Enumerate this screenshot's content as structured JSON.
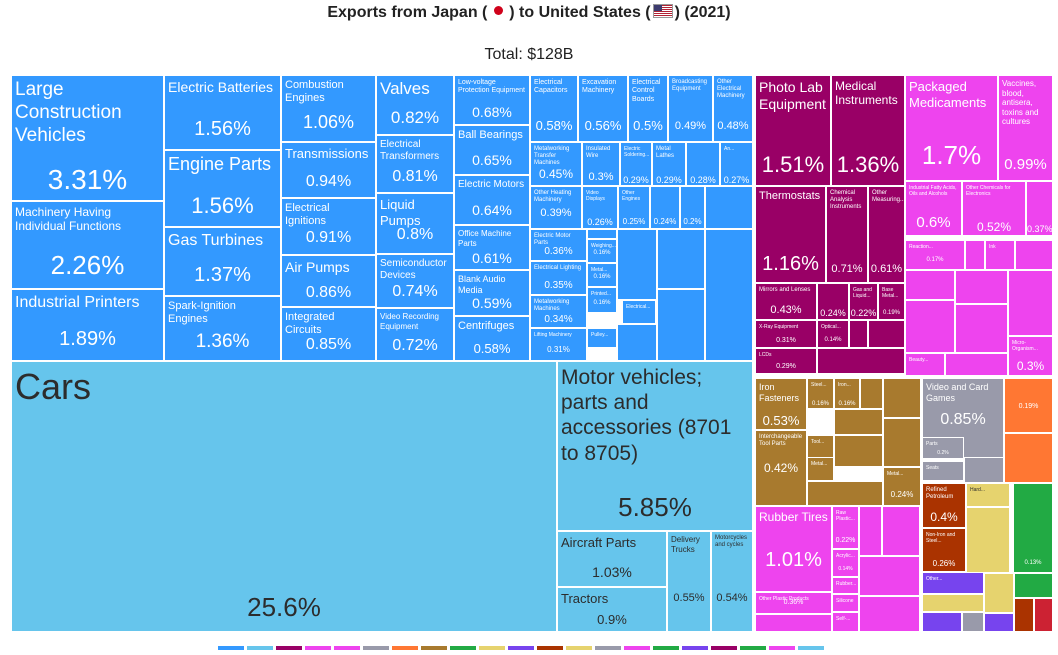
{
  "title_text": "Exports from Japan ( ",
  "title_mid": " ) to United States (",
  "title_end": ") (2021)",
  "total": "Total: $128B",
  "colors": {
    "machinery": "#3399ff",
    "transport": "#66c5ec",
    "instruments": "#990066",
    "chemicals": "#ee44ee",
    "metals": "#a87a2e",
    "plastics": "#ee44ee",
    "mineral": "#aa3300",
    "misc": "#999aaa",
    "orange": "#ff7733",
    "green": "#22aa44",
    "yellow": "#e6d36e",
    "purple": "#7744ee"
  },
  "chart_data": {
    "type": "treemap",
    "title": "Exports from Japan ( ) to United States (2021)",
    "total": "$128B",
    "items": [
      {
        "name": "Large Construction Vehicles",
        "value": 3.31,
        "group": "machinery"
      },
      {
        "name": "Machinery Having Individual Functions",
        "value": 2.26,
        "group": "machinery"
      },
      {
        "name": "Industrial Printers",
        "value": 1.89,
        "group": "machinery"
      },
      {
        "name": "Electric Batteries",
        "value": 1.56,
        "group": "machinery"
      },
      {
        "name": "Engine Parts",
        "value": 1.56,
        "group": "machinery"
      },
      {
        "name": "Gas Turbines",
        "value": 1.37,
        "group": "machinery"
      },
      {
        "name": "Spark-Ignition Engines",
        "value": 1.36,
        "group": "machinery"
      },
      {
        "name": "Combustion Engines",
        "value": 1.06,
        "group": "machinery"
      },
      {
        "name": "Transmissions",
        "value": 0.94,
        "group": "machinery"
      },
      {
        "name": "Electrical Ignitions",
        "value": 0.91,
        "group": "machinery"
      },
      {
        "name": "Air Pumps",
        "value": 0.86,
        "group": "machinery"
      },
      {
        "name": "Integrated Circuits",
        "value": 0.85,
        "group": "machinery"
      },
      {
        "name": "Valves",
        "value": 0.82,
        "group": "machinery"
      },
      {
        "name": "Electrical Transformers",
        "value": 0.81,
        "group": "machinery"
      },
      {
        "name": "Liquid Pumps",
        "value": 0.8,
        "group": "machinery"
      },
      {
        "name": "Semiconductor Devices",
        "value": 0.74,
        "group": "machinery"
      },
      {
        "name": "Video Recording Equipment",
        "value": 0.72,
        "group": "machinery"
      },
      {
        "name": "Low-voltage Protection Equipment",
        "value": 0.68,
        "group": "machinery"
      },
      {
        "name": "Ball Bearings",
        "value": 0.65,
        "group": "machinery"
      },
      {
        "name": "Electric Motors",
        "value": 0.64,
        "group": "machinery"
      },
      {
        "name": "Office Machine Parts",
        "value": 0.61,
        "group": "machinery"
      },
      {
        "name": "Blank Audio Media",
        "value": 0.59,
        "group": "machinery"
      },
      {
        "name": "Centrifuges",
        "value": 0.58,
        "group": "machinery"
      },
      {
        "name": "Electrical Capacitors",
        "value": 0.58,
        "group": "machinery"
      },
      {
        "name": "Excavation Machinery",
        "value": 0.56,
        "group": "machinery"
      },
      {
        "name": "Electrical Control Boards",
        "value": 0.5,
        "group": "machinery"
      },
      {
        "name": "Broadcasting Equipment",
        "value": 0.49,
        "group": "machinery"
      },
      {
        "name": "Other Electrical Machinery",
        "value": 0.48,
        "group": "machinery"
      },
      {
        "name": "Metalworking Transfer Machines",
        "value": 0.45,
        "group": "machinery"
      },
      {
        "name": "Insulated Wire",
        "value": 0.3,
        "group": "machinery"
      },
      {
        "name": "Electric Soldering Equipment",
        "value": 0.29,
        "group": "machinery"
      },
      {
        "name": "Metal Lathes",
        "value": 0.29,
        "group": "machinery"
      },
      {
        "name": "Other Heating Machinery",
        "value": 0.39,
        "group": "machinery"
      },
      {
        "name": "Video Displays",
        "value": 0.26,
        "group": "machinery"
      },
      {
        "name": "Other Engines",
        "value": 0.25,
        "group": "machinery"
      },
      {
        "name": "Electric Motor Parts",
        "value": 0.36,
        "group": "machinery"
      },
      {
        "name": "Electrical Lighting",
        "value": 0.35,
        "group": "machinery"
      },
      {
        "name": "Metalworking Machines",
        "value": 0.34,
        "group": "machinery"
      },
      {
        "name": "Lifting Machinery",
        "value": 0.31,
        "group": "machinery"
      },
      {
        "name": "Cars",
        "value": 25.6,
        "group": "transport"
      },
      {
        "name": "Motor vehicles; parts and accessories (8701 to 8705)",
        "value": 5.85,
        "group": "transport"
      },
      {
        "name": "Aircraft Parts",
        "value": 1.03,
        "group": "transport"
      },
      {
        "name": "Tractors",
        "value": 0.9,
        "group": "transport"
      },
      {
        "name": "Delivery Trucks",
        "value": 0.55,
        "group": "transport"
      },
      {
        "name": "Motorcycles and cycles",
        "value": 0.54,
        "group": "transport"
      },
      {
        "name": "Photo Lab Equipment",
        "value": 1.51,
        "group": "instruments"
      },
      {
        "name": "Medical Instruments",
        "value": 1.36,
        "group": "instruments"
      },
      {
        "name": "Thermostats",
        "value": 1.16,
        "group": "instruments"
      },
      {
        "name": "Chemical Analysis Instruments",
        "value": 0.71,
        "group": "instruments"
      },
      {
        "name": "Other Measuring Instruments",
        "value": 0.61,
        "group": "instruments"
      },
      {
        "name": "Mirrors and Lenses",
        "value": 0.43,
        "group": "instruments"
      },
      {
        "name": "X-Ray Equipment",
        "value": 0.31,
        "group": "instruments"
      },
      {
        "name": "LCDs",
        "value": 0.29,
        "group": "instruments"
      },
      {
        "name": "Gas and Liquid Flow Measuring Instruments",
        "value": 0.22,
        "group": "instruments"
      },
      {
        "name": "Packaged Medicaments",
        "value": 1.7,
        "group": "chemicals"
      },
      {
        "name": "Vaccines, blood, antisera, toxins and cultures",
        "value": 0.99,
        "group": "chemicals"
      },
      {
        "name": "Industrial Fatty Acids, Oils and Alcohols",
        "value": 0.6,
        "group": "chemicals"
      },
      {
        "name": "Other Chemicals for Electronics",
        "value": 0.52,
        "group": "chemicals"
      },
      {
        "name": "Iron Fasteners",
        "value": 0.53,
        "group": "metals"
      },
      {
        "name": "Interchangeable Tool Parts",
        "value": 0.42,
        "group": "metals"
      },
      {
        "name": "Rubber Tires",
        "value": 1.01,
        "group": "plastics"
      },
      {
        "name": "Other Plastic Products",
        "value": 0.36,
        "group": "plastics"
      },
      {
        "name": "Video and Card Games",
        "value": 0.85,
        "group": "misc"
      },
      {
        "name": "Refined Petroleum",
        "value": 0.4,
        "group": "mineral"
      },
      {
        "name": "Non-Iron and Steel Metal",
        "value": 0.26,
        "group": "mineral"
      }
    ]
  },
  "tiles": [
    {
      "name": "Large Construction Vehicles",
      "value": "3.31%",
      "g": "machinery"
    },
    {
      "name": "Machinery Having Individual Functions",
      "value": "2.26%",
      "g": "machinery"
    },
    {
      "name": "Industrial Printers",
      "value": "1.89%",
      "g": "machinery"
    },
    {
      "name": "Electric Batteries",
      "value": "1.56%",
      "g": "machinery"
    },
    {
      "name": "Engine Parts",
      "value": "1.56%",
      "g": "machinery"
    },
    {
      "name": "Gas Turbines",
      "value": "1.37%",
      "g": "machinery"
    },
    {
      "name": "Spark-Ignition Engines",
      "value": "1.36%",
      "g": "machinery"
    },
    {
      "name": "Combustion Engines",
      "value": "1.06%",
      "g": "machinery"
    },
    {
      "name": "Transmissions",
      "value": "0.94%",
      "g": "machinery"
    },
    {
      "name": "Electrical Ignitions",
      "value": "0.91%",
      "g": "machinery"
    },
    {
      "name": "Air Pumps",
      "value": "0.86%",
      "g": "machinery"
    },
    {
      "name": "Integrated Circuits",
      "value": "0.85%",
      "g": "machinery"
    },
    {
      "name": "Valves",
      "value": "0.82%",
      "g": "machinery"
    },
    {
      "name": "Electrical Transformers",
      "value": "0.81%",
      "g": "machinery"
    },
    {
      "name": "Liquid Pumps",
      "value": "0.8%",
      "g": "machinery"
    },
    {
      "name": "Semiconductor Devices",
      "value": "0.74%",
      "g": "machinery"
    },
    {
      "name": "Video Recording Equipment",
      "value": "0.72%",
      "g": "machinery"
    },
    {
      "name": "Low-voltage Protection Equipment",
      "value": "0.68%",
      "g": "machinery"
    },
    {
      "name": "Ball Bearings",
      "value": "0.65%",
      "g": "machinery"
    },
    {
      "name": "Electric Motors",
      "value": "0.64%",
      "g": "machinery"
    },
    {
      "name": "Office Machine Parts",
      "value": "0.61%",
      "g": "machinery"
    },
    {
      "name": "Blank Audio Media",
      "value": "0.59%",
      "g": "machinery"
    },
    {
      "name": "Centrifuges",
      "value": "0.58%",
      "g": "machinery"
    },
    {
      "name": "Electrical Capacitors",
      "value": "0.58%",
      "g": "machinery"
    },
    {
      "name": "Excavation Machinery",
      "value": "0.56%",
      "g": "machinery"
    },
    {
      "name": "Electrical Control Boards",
      "value": "0.5%",
      "g": "machinery"
    },
    {
      "name": "Broadcasting Equipment",
      "value": "0.49%",
      "g": "machinery"
    },
    {
      "name": "Other Electrical Machinery",
      "value": "0.48%",
      "g": "machinery"
    },
    {
      "name": "Metalworking Transfer Machines",
      "value": "0.45%",
      "g": "machinery"
    },
    {
      "name": "Insulated Wire",
      "value": "0.3%",
      "g": "machinery"
    },
    {
      "name": "Electric Soldering...",
      "value": "0.29%",
      "g": "machinery"
    },
    {
      "name": "Metal Lathes",
      "value": "0.29%",
      "g": "machinery"
    },
    {
      "name": "",
      "value": "0.28%",
      "g": "machinery"
    },
    {
      "name": "An...",
      "value": "0.27%",
      "g": "machinery"
    },
    {
      "name": "Other Heating Machinery",
      "value": "0.39%",
      "g": "machinery"
    },
    {
      "name": "Video Displays",
      "value": "0.26%",
      "g": "machinery"
    },
    {
      "name": "Other Engines",
      "value": "0.25%",
      "g": "machinery"
    },
    {
      "name": "",
      "value": "0.24%",
      "g": "machinery"
    },
    {
      "name": "",
      "value": "0.2%",
      "g": "machinery"
    },
    {
      "name": "Electric Motor Parts",
      "value": "0.36%",
      "g": "machinery"
    },
    {
      "name": "Weighing...",
      "value": "0.16%",
      "g": "machinery"
    },
    {
      "name": "Electrical Lighting",
      "value": "0.35%",
      "g": "machinery"
    },
    {
      "name": "Metal...",
      "value": "0.16%",
      "g": "machinery"
    },
    {
      "name": "Metalworking Machines",
      "value": "0.34%",
      "g": "machinery"
    },
    {
      "name": "Printed...",
      "value": "0.16%",
      "g": "machinery"
    },
    {
      "name": "Electrical...",
      "value": "",
      "g": "machinery"
    },
    {
      "name": "Lifting Machinery",
      "value": "0.31%",
      "g": "machinery"
    },
    {
      "name": "Pulley...",
      "value": "",
      "g": "machinery"
    },
    {
      "name": "Cars",
      "value": "25.6%",
      "g": "transport"
    },
    {
      "name": "Motor vehicles; parts and accessories (8701 to 8705)",
      "value": "5.85%",
      "g": "transport"
    },
    {
      "name": "Aircraft Parts",
      "value": "1.03%",
      "g": "transport"
    },
    {
      "name": "Tractors",
      "value": "0.9%",
      "g": "transport"
    },
    {
      "name": "Delivery Trucks",
      "value": "0.55%",
      "g": "transport"
    },
    {
      "name": "Motorcycles and cycles",
      "value": "0.54%",
      "g": "transport"
    },
    {
      "name": "Photo Lab Equipment",
      "value": "1.51%",
      "g": "instruments"
    },
    {
      "name": "Medical Instruments",
      "value": "1.36%",
      "g": "instruments"
    },
    {
      "name": "Thermostats",
      "value": "1.16%",
      "g": "instruments"
    },
    {
      "name": "Chemical Analysis Instruments",
      "value": "0.71%",
      "g": "instruments"
    },
    {
      "name": "Other Measuring...",
      "value": "0.61%",
      "g": "instruments"
    },
    {
      "name": "Mirrors and Lenses",
      "value": "0.43%",
      "g": "instruments"
    },
    {
      "name": "",
      "value": "0.24%",
      "g": "instruments"
    },
    {
      "name": "Gas and Liquid...",
      "value": "0.22%",
      "g": "instruments"
    },
    {
      "name": "Base Metal...",
      "value": "0.19%",
      "g": "instruments"
    },
    {
      "name": "X-Ray Equipment",
      "value": "0.31%",
      "g": "instruments"
    },
    {
      "name": "Optical...",
      "value": "0.14%",
      "g": "instruments"
    },
    {
      "name": "LCDs",
      "value": "0.29%",
      "g": "instruments"
    },
    {
      "name": "Packaged Medicaments",
      "value": "1.7%",
      "g": "chemicals"
    },
    {
      "name": "Vaccines, blood, antisera, toxins and cultures",
      "value": "0.99%",
      "g": "chemicals"
    },
    {
      "name": "Industrial Fatty Acids, Oils and Alcohols",
      "value": "0.6%",
      "g": "chemicals"
    },
    {
      "name": "Other Chemicals for Electronics",
      "value": "0.52%",
      "g": "chemicals"
    },
    {
      "name": "",
      "value": "0.37%",
      "g": "chemicals"
    },
    {
      "name": "Reaction...",
      "value": "0.17%",
      "g": "chemicals"
    },
    {
      "name": "Ink",
      "value": "",
      "g": "chemicals"
    },
    {
      "name": "Micro-Organism...",
      "value": "0.3%",
      "g": "chemicals"
    },
    {
      "name": "Beauty...",
      "value": "",
      "g": "chemicals"
    },
    {
      "name": "Iron Fasteners",
      "value": "0.53%",
      "g": "metals"
    },
    {
      "name": "Steel...",
      "value": "0.16%",
      "g": "metals"
    },
    {
      "name": "Iron...",
      "value": "0.16%",
      "g": "metals"
    },
    {
      "name": "Interchangeable Tool Parts",
      "value": "0.42%",
      "g": "metals"
    },
    {
      "name": "Tool...",
      "value": "",
      "g": "metals"
    },
    {
      "name": "Metal...",
      "value": "",
      "g": "metals"
    },
    {
      "name": "Metal...",
      "value": "0.24%",
      "g": "metals"
    },
    {
      "name": "Rubber Tires",
      "value": "1.01%",
      "g": "plastics"
    },
    {
      "name": "Raw Plastic...",
      "value": "0.22%",
      "g": "plastics"
    },
    {
      "name": "Acrylic...",
      "value": "0.14%",
      "g": "plastics"
    },
    {
      "name": "Rubber...",
      "value": "",
      "g": "plastics"
    },
    {
      "name": "Other Plastic Products",
      "value": "0.36%",
      "g": "plastics"
    },
    {
      "name": "Silicone",
      "value": "",
      "g": "plastics"
    },
    {
      "name": "Self-...",
      "value": "",
      "g": "plastics"
    },
    {
      "name": "Video and Card Games",
      "value": "0.85%",
      "g": "misc"
    },
    {
      "name": "Parts",
      "value": "0.2%",
      "g": "misc"
    },
    {
      "name": "Seats",
      "value": "",
      "g": "misc"
    },
    {
      "name": "",
      "value": "0.19%",
      "g": "orange"
    },
    {
      "name": "Refined Petroleum",
      "value": "0.4%",
      "g": "mineral"
    },
    {
      "name": "Non-Iron and Steel...",
      "value": "0.26%",
      "g": "mineral"
    },
    {
      "name": "Hard...",
      "value": "",
      "g": "yellow"
    },
    {
      "name": "",
      "value": "0.13%",
      "g": "green"
    },
    {
      "name": "Other...",
      "value": "",
      "g": "purple"
    }
  ],
  "legend": [
    "#3399ff",
    "#66c5ec",
    "#990066",
    "#ee44ee",
    "#ee44ee",
    "#999aaa",
    "#ff7733",
    "#a87a2e",
    "#22aa44",
    "#e6d36e",
    "#7744ee",
    "#aa3300",
    "#e6d36e",
    "#999aaa",
    "#ee44ee",
    "#22aa44",
    "#7744ee",
    "#990066",
    "#22aa44",
    "#ee44ee",
    "#66c5ec"
  ]
}
